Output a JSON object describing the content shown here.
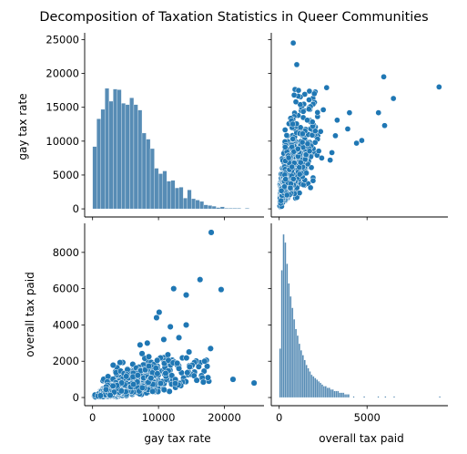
{
  "chart_data": {
    "type": "pairplot",
    "title": "Decomposition of Taxation Statistics in Queer Communities",
    "variables": [
      "gay tax rate",
      "overall tax paid"
    ],
    "color": "#1f77b4",
    "bar_color": "#3a78a8",
    "axes": {
      "gay tax rate": {
        "lim": [
          -1200,
          26000
        ],
        "ticks": [
          0,
          10000,
          20000
        ],
        "diag_ticks": [
          0,
          5000,
          10000,
          15000,
          20000,
          25000
        ]
      },
      "overall tax paid": {
        "lim": [
          -450,
          9600
        ],
        "ticks": [
          0,
          5000
        ],
        "y_ticks": [
          0,
          2000,
          4000,
          6000,
          8000
        ]
      }
    },
    "hist_gay_tax_rate": {
      "bin_width": 625,
      "bin_start": 0,
      "counts": [
        9.2,
        13.3,
        14.7,
        17.8,
        15.9,
        17.7,
        17.6,
        15.6,
        15.4,
        16.4,
        15.4,
        14.6,
        11.2,
        10.3,
        8.9,
        6.0,
        5.2,
        5.6,
        4.1,
        4.2,
        3.1,
        3.2,
        1.6,
        2.8,
        1.5,
        1.3,
        1.1,
        0.6,
        0.5,
        0.4,
        0.2,
        0.3,
        0.1,
        0.1,
        0.1,
        0.1,
        0.0,
        0.1,
        0.0,
        0.0
      ],
      "scale_max": 25000
    },
    "hist_overall_tax_paid": {
      "bin_width": 100,
      "bin_start": 0,
      "counts": [
        30,
        78,
        100,
        95,
        82,
        70,
        62,
        55,
        48,
        42,
        38,
        33,
        29,
        26,
        23,
        20,
        18,
        16,
        14,
        13,
        12,
        11,
        10,
        9,
        8,
        7,
        7,
        6,
        6,
        5,
        5,
        4,
        4,
        4,
        3,
        3,
        3,
        2,
        2,
        2
      ],
      "tail": [
        [
          4200,
          1
        ],
        [
          4800,
          1
        ],
        [
          5600,
          1
        ],
        [
          6000,
          1
        ],
        [
          6500,
          1
        ],
        [
          9100,
          1
        ]
      ]
    },
    "scatter_outliers": [
      [
        24500,
        800
      ],
      [
        21300,
        1000
      ],
      [
        19500,
        5950
      ],
      [
        18000,
        9100
      ],
      [
        16300,
        6500
      ],
      [
        14200,
        5650
      ],
      [
        12300,
        6000
      ],
      [
        10100,
        4700
      ],
      [
        9700,
        4400
      ],
      [
        14200,
        4000
      ],
      [
        11800,
        3900
      ],
      [
        13100,
        3300
      ],
      [
        10800,
        3200
      ],
      [
        8300,
        3000
      ],
      [
        7200,
        2900
      ],
      [
        17900,
        2700
      ],
      [
        17000,
        2000
      ],
      [
        16100,
        1700
      ],
      [
        15400,
        1200
      ],
      [
        17500,
        1100
      ],
      [
        16800,
        850
      ],
      [
        15800,
        950
      ]
    ],
    "scatter_main": {
      "n": 900,
      "x_median": 4500,
      "slope": 0.115
    }
  }
}
